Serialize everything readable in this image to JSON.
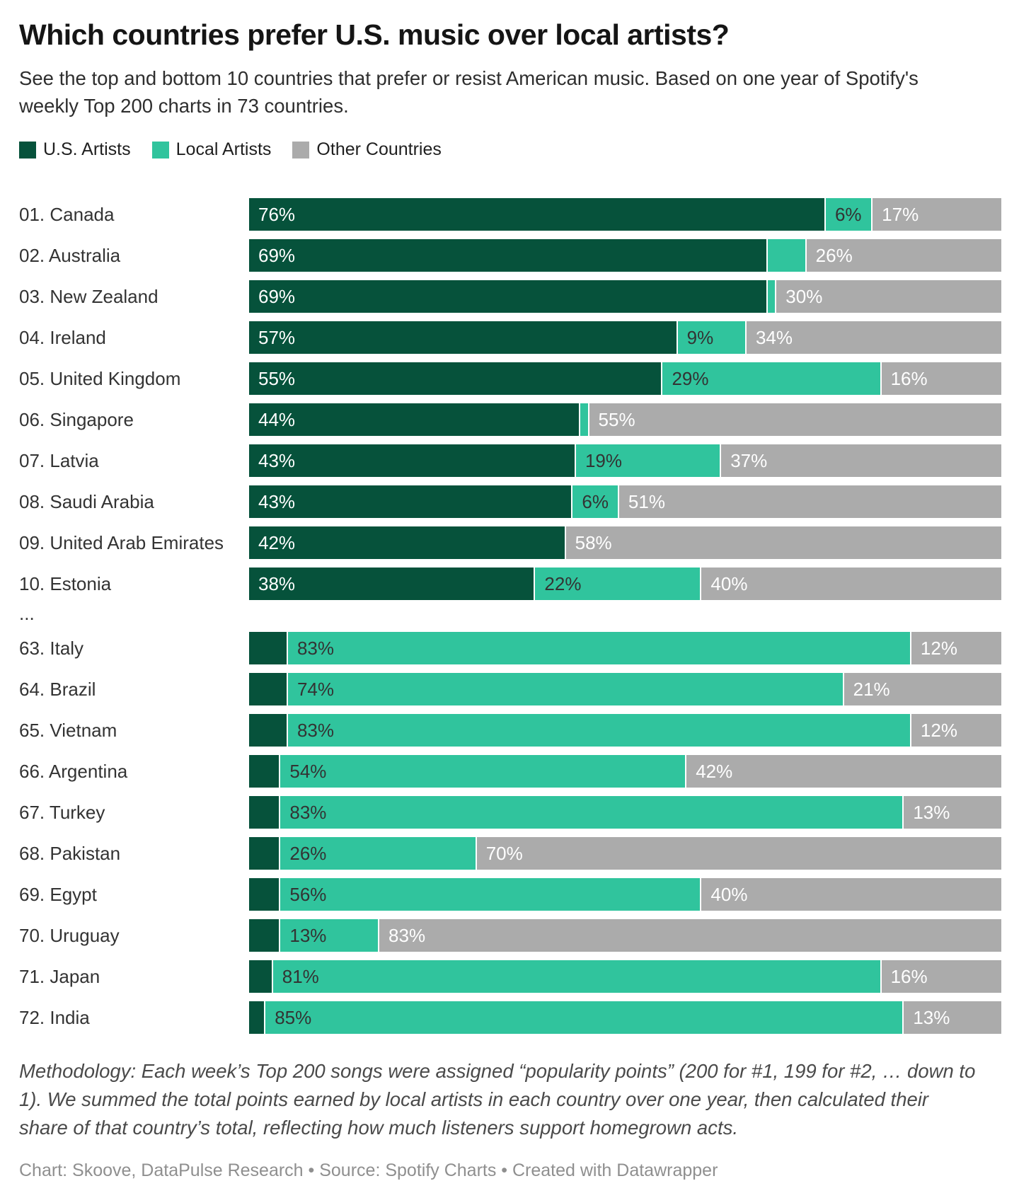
{
  "header": {
    "title": "Which countries prefer U.S. music over local artists?",
    "subtitle": "See the top and bottom 10 countries that prefer or resist American music. Based on one year of Spotify's weekly Top 200 charts in 73 countries."
  },
  "legend": {
    "items": [
      {
        "key": "us",
        "label": "U.S. Artists",
        "color": "#06523b"
      },
      {
        "key": "local",
        "label": "Local Artists",
        "color": "#30c49d"
      },
      {
        "key": "other",
        "label": "Other Countries",
        "color": "#ababab"
      }
    ]
  },
  "chart_data": {
    "type": "bar",
    "stacked": true,
    "orientation": "horizontal",
    "unit": "percent",
    "series": [
      "U.S. Artists",
      "Local Artists",
      "Other Countries"
    ],
    "colors": {
      "us": "#06523b",
      "local": "#30c49d",
      "other": "#ababab"
    },
    "label_colors": {
      "us": "#ffffff",
      "local": "#333333",
      "other": "#ffffff"
    },
    "separator": "...",
    "top_rows": [
      {
        "label": "01. Canada",
        "us": 76,
        "local": 6,
        "other": 17,
        "us_label": "76%",
        "local_label": "6%",
        "other_label": "17%"
      },
      {
        "label": "02. Australia",
        "us": 69,
        "local": 5,
        "other": 26,
        "us_label": "69%",
        "local_label": "",
        "other_label": "26%"
      },
      {
        "label": "03. New Zealand",
        "us": 69,
        "local": 1,
        "other": 30,
        "us_label": "69%",
        "local_label": "",
        "other_label": "30%"
      },
      {
        "label": "04. Ireland",
        "us": 57,
        "local": 9,
        "other": 34,
        "us_label": "57%",
        "local_label": "9%",
        "other_label": "34%"
      },
      {
        "label": "05. United Kingdom",
        "us": 55,
        "local": 29,
        "other": 16,
        "us_label": "55%",
        "local_label": "29%",
        "other_label": "16%"
      },
      {
        "label": "06. Singapore",
        "us": 44,
        "local": 1,
        "other": 55,
        "us_label": "44%",
        "local_label": "",
        "other_label": "55%"
      },
      {
        "label": "07. Latvia",
        "us": 43,
        "local": 19,
        "other": 37,
        "us_label": "43%",
        "local_label": "19%",
        "other_label": "37%"
      },
      {
        "label": "08. Saudi Arabia",
        "us": 43,
        "local": 6,
        "other": 51,
        "us_label": "43%",
        "local_label": "6%",
        "other_label": "51%"
      },
      {
        "label": "09. United Arab Emirates",
        "us": 42,
        "local": 0,
        "other": 58,
        "us_label": "42%",
        "local_label": "",
        "other_label": "58%"
      },
      {
        "label": "10. Estonia",
        "us": 38,
        "local": 22,
        "other": 40,
        "us_label": "38%",
        "local_label": "22%",
        "other_label": "40%"
      }
    ],
    "bottom_rows": [
      {
        "label": "63. Italy",
        "us": 5,
        "local": 83,
        "other": 12,
        "us_label": "",
        "local_label": "83%",
        "other_label": "12%"
      },
      {
        "label": "64. Brazil",
        "us": 5,
        "local": 74,
        "other": 21,
        "us_label": "",
        "local_label": "74%",
        "other_label": "21%"
      },
      {
        "label": "65. Vietnam",
        "us": 5,
        "local": 83,
        "other": 12,
        "us_label": "",
        "local_label": "83%",
        "other_label": "12%"
      },
      {
        "label": "66. Argentina",
        "us": 4,
        "local": 54,
        "other": 42,
        "us_label": "",
        "local_label": "54%",
        "other_label": "42%"
      },
      {
        "label": "67. Turkey",
        "us": 4,
        "local": 83,
        "other": 13,
        "us_label": "",
        "local_label": "83%",
        "other_label": "13%"
      },
      {
        "label": "68. Pakistan",
        "us": 4,
        "local": 26,
        "other": 70,
        "us_label": "",
        "local_label": "26%",
        "other_label": "70%"
      },
      {
        "label": "69. Egypt",
        "us": 4,
        "local": 56,
        "other": 40,
        "us_label": "",
        "local_label": "56%",
        "other_label": "40%"
      },
      {
        "label": "70. Uruguay",
        "us": 4,
        "local": 13,
        "other": 83,
        "us_label": "",
        "local_label": "13%",
        "other_label": "83%"
      },
      {
        "label": "71. Japan",
        "us": 3,
        "local": 81,
        "other": 16,
        "us_label": "",
        "local_label": "81%",
        "other_label": "16%"
      },
      {
        "label": "72. India",
        "us": 2,
        "local": 85,
        "other": 13,
        "us_label": "",
        "local_label": "85%",
        "other_label": "13%"
      }
    ]
  },
  "notes": {
    "methodology": "Methodology: Each week’s Top 200 songs were assigned “popularity points” (200 for #1, 199 for #2, … down to 1). We summed the total points earned by local artists in each country over one year, then calculated their share of that country’s total, reflecting how much listeners support homegrown acts.",
    "footer": "Chart: Skoove, DataPulse Research • Source: Spotify Charts • Created with Datawrapper"
  }
}
